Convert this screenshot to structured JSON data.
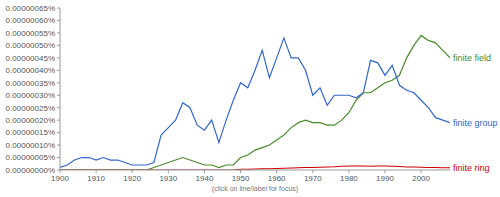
{
  "chart_data": {
    "type": "line",
    "annotations": [
      "(click on line/label for focus)"
    ],
    "x": [
      1900,
      1902,
      1904,
      1906,
      1908,
      1910,
      1912,
      1914,
      1916,
      1918,
      1920,
      1922,
      1924,
      1926,
      1928,
      1930,
      1932,
      1934,
      1936,
      1938,
      1940,
      1942,
      1944,
      1946,
      1948,
      1950,
      1952,
      1954,
      1956,
      1958,
      1960,
      1962,
      1964,
      1966,
      1968,
      1970,
      1972,
      1974,
      1976,
      1978,
      1980,
      1982,
      1984,
      1986,
      1988,
      1990,
      1992,
      1994,
      1996,
      1998,
      2000,
      2002,
      2004,
      2006,
      2008
    ],
    "series": [
      {
        "name": "finite field",
        "color": "#4a8a2a",
        "values": [
          0,
          0,
          0,
          0,
          0,
          0,
          0,
          0,
          0,
          0,
          0,
          0,
          0,
          1e-08,
          2e-08,
          3e-08,
          4e-08,
          5e-08,
          4e-08,
          3e-08,
          2e-08,
          2e-08,
          1e-08,
          2e-08,
          2e-08,
          5e-08,
          6e-08,
          8e-08,
          9e-08,
          1e-07,
          1.2e-07,
          1.4e-07,
          1.7e-07,
          1.9e-07,
          2e-07,
          1.9e-07,
          1.9e-07,
          1.8e-07,
          1.8e-07,
          2e-07,
          2.3e-07,
          2.8e-07,
          3.1e-07,
          3.1e-07,
          3.3e-07,
          3.5e-07,
          3.6e-07,
          3.8e-07,
          4.5e-07,
          5e-07,
          5.4e-07,
          5.2e-07,
          5.1e-07,
          4.8e-07,
          4.5e-07
        ]
      },
      {
        "name": "finite group",
        "color": "#3366cc",
        "values": [
          1e-08,
          2e-08,
          4e-08,
          5e-08,
          5e-08,
          4e-08,
          5e-08,
          4e-08,
          4e-08,
          3e-08,
          2e-08,
          2e-08,
          2e-08,
          3e-08,
          1.4e-07,
          1.7e-07,
          2e-07,
          2.7e-07,
          2.5e-07,
          1.8e-07,
          1.6e-07,
          2e-07,
          1.1e-07,
          2e-07,
          2.8e-07,
          3.5e-07,
          3.3e-07,
          4e-07,
          4.8e-07,
          3.7e-07,
          4.5e-07,
          5.3e-07,
          4.5e-07,
          4.5e-07,
          4e-07,
          3e-07,
          3.3e-07,
          2.6e-07,
          3e-07,
          3e-07,
          3e-07,
          2.9e-07,
          3.1e-07,
          4.4e-07,
          4.3e-07,
          3.8e-07,
          4.2e-07,
          3.4e-07,
          3.2e-07,
          3.1e-07,
          2.8e-07,
          2.5e-07,
          2.1e-07,
          2e-07,
          1.9e-07
        ]
      },
      {
        "name": "finite ring",
        "color": "#cc0000",
        "values": [
          0,
          0,
          0,
          0,
          0,
          0,
          0,
          0,
          0,
          0,
          0,
          0,
          0,
          0,
          0,
          0,
          0,
          0,
          0,
          0,
          0,
          0,
          0,
          0,
          0,
          3e-09,
          3e-09,
          4e-09,
          5e-09,
          5e-09,
          6e-09,
          7e-09,
          8e-09,
          9e-09,
          1e-08,
          1e-08,
          1.1e-08,
          1.2e-08,
          1.3e-08,
          1.5e-08,
          1.6e-08,
          1.6e-08,
          1.6e-08,
          1.5e-08,
          1.6e-08,
          1.6e-08,
          1.5e-08,
          1.4e-08,
          1.2e-08,
          1.2e-08,
          1.1e-08,
          1e-08,
          1e-08,
          9e-09,
          9e-09
        ]
      }
    ],
    "xlim": [
      1900,
      2008
    ],
    "xticks": [
      1900,
      1910,
      1920,
      1930,
      1940,
      1950,
      1960,
      1970,
      1980,
      1990,
      2000
    ],
    "ylim": [
      0,
      6.5e-07
    ],
    "yticks": [
      {
        "value": 0,
        "label": "0.00000000%"
      },
      {
        "value": 5e-08,
        "label": "0.00000005%"
      },
      {
        "value": 1e-07,
        "label": "0.00000010%"
      },
      {
        "value": 1.5e-07,
        "label": "0.00000015%"
      },
      {
        "value": 2e-07,
        "label": "0.00000020%"
      },
      {
        "value": 2.5e-07,
        "label": "0.00000025%"
      },
      {
        "value": 3e-07,
        "label": "0.00000030%"
      },
      {
        "value": 3.5e-07,
        "label": "0.00000035%"
      },
      {
        "value": 4e-07,
        "label": "0.00000040%"
      },
      {
        "value": 4.5e-07,
        "label": "0.00000045%"
      },
      {
        "value": 5e-07,
        "label": "0.00000050%"
      },
      {
        "value": 5.5e-07,
        "label": "0.00000055%"
      },
      {
        "value": 6e-07,
        "label": "0.00000060%"
      },
      {
        "value": 6.5e-07,
        "label": "0.00000065%"
      }
    ],
    "grid": false,
    "legend": false
  }
}
